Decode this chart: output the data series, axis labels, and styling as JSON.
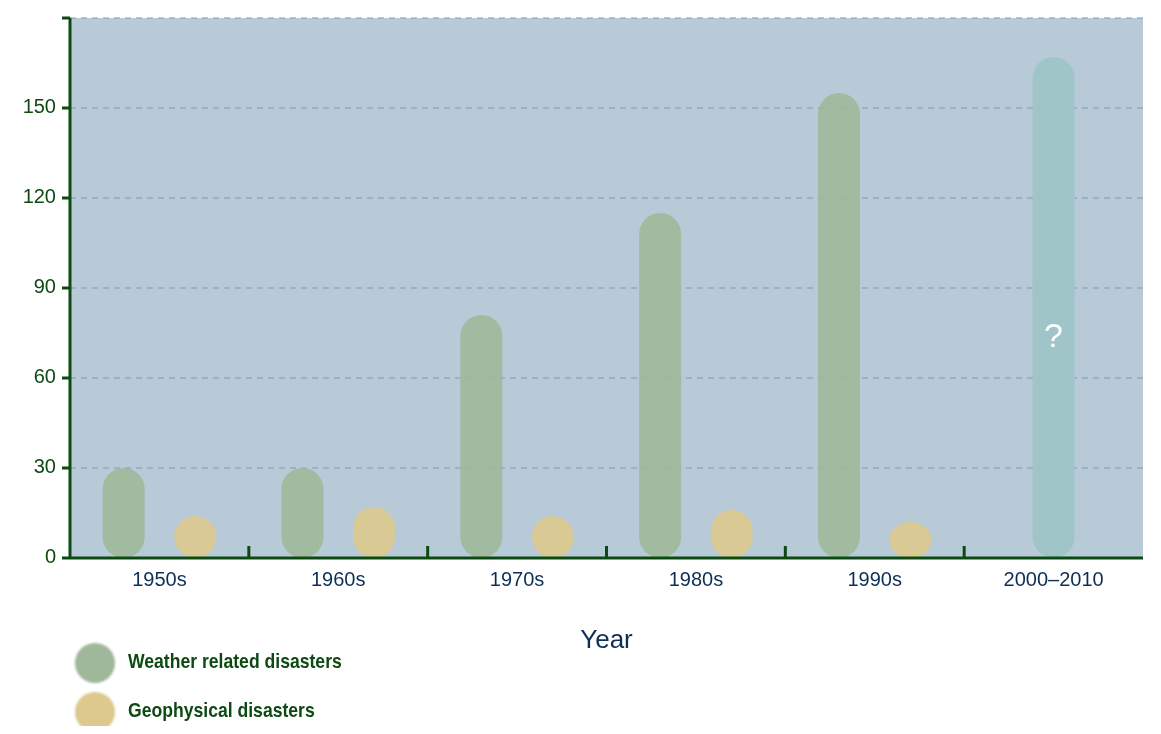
{
  "chart_data": {
    "type": "bar",
    "xlabel": "Year",
    "categories": [
      "1950s",
      "1960s",
      "1970s",
      "1980s",
      "1990s",
      "2000–2010"
    ],
    "series": [
      {
        "name": "Weather related disasters",
        "color": "#9fb89a",
        "values": [
          30,
          30,
          81,
          115,
          155,
          null
        ]
      },
      {
        "name": "Geophysical disasters",
        "color": "#ddc98e",
        "values": [
          14,
          17,
          14,
          16,
          12,
          null
        ]
      },
      {
        "color": "#9cc4c8",
        "values": [
          null,
          null,
          null,
          null,
          null,
          167
        ]
      }
    ],
    "ylim": [
      0,
      180
    ],
    "yticks": [
      0,
      30,
      60,
      90,
      120,
      150,
      {
        "value": 180,
        "label": null
      }
    ],
    "grid": "y",
    "legend": "bottom left",
    "annotations": [
      "?"
    ]
  }
}
